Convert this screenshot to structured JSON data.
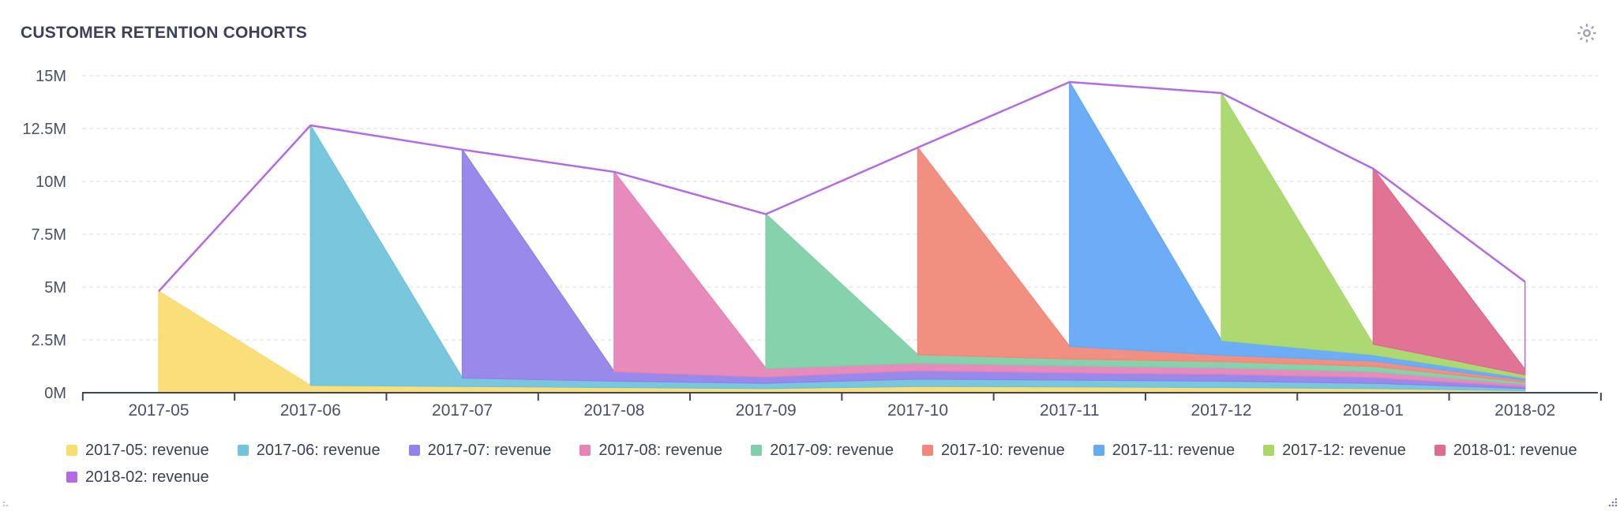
{
  "card": {
    "title": "CUSTOMER RETENTION COHORTS",
    "settings_icon": "gear-icon"
  },
  "colors": {
    "grid": "#d9dbe3",
    "axis": "#3e4460",
    "tick_text": "#4a4f6a",
    "top_line": "#b36ae2"
  },
  "chart_data": {
    "type": "area",
    "stacked": true,
    "title": "CUSTOMER RETENTION COHORTS",
    "xlabel": "",
    "ylabel": "",
    "x": [
      "2017-05",
      "2017-06",
      "2017-07",
      "2017-08",
      "2017-09",
      "2017-10",
      "2017-11",
      "2017-12",
      "2018-01",
      "2018-02"
    ],
    "y_ticks": [
      "0M",
      "2.5M",
      "5M",
      "7.5M",
      "10M",
      "12.5M",
      "15M"
    ],
    "ylim": [
      0,
      15000000
    ],
    "grid": true,
    "legend_position": "bottom-left",
    "series": [
      {
        "name": "2017-05: revenue",
        "color": "#f9dc72",
        "values": [
          4800000,
          350000,
          300000,
          250000,
          200000,
          300000,
          280000,
          250000,
          200000,
          100000
        ]
      },
      {
        "name": "2017-06: revenue",
        "color": "#71c4db",
        "values": [
          0,
          12300000,
          400000,
          300000,
          250000,
          350000,
          320000,
          300000,
          250000,
          100000
        ]
      },
      {
        "name": "2017-07: revenue",
        "color": "#9283ea",
        "values": [
          0,
          0,
          10800000,
          450000,
          300000,
          400000,
          350000,
          330000,
          280000,
          100000
        ]
      },
      {
        "name": "2017-08: revenue",
        "color": "#e684b8",
        "values": [
          0,
          0,
          0,
          9450000,
          400000,
          350000,
          330000,
          300000,
          270000,
          100000
        ]
      },
      {
        "name": "2017-09: revenue",
        "color": "#7fd0a8",
        "values": [
          0,
          0,
          0,
          0,
          7300000,
          400000,
          320000,
          300000,
          250000,
          100000
        ]
      },
      {
        "name": "2017-10: revenue",
        "color": "#f0897a",
        "values": [
          0,
          0,
          0,
          0,
          0,
          9800000,
          600000,
          300000,
          250000,
          100000
        ]
      },
      {
        "name": "2017-11: revenue",
        "color": "#65a9f7",
        "values": [
          0,
          0,
          0,
          0,
          0,
          0,
          12500000,
          700000,
          300000,
          100000
        ]
      },
      {
        "name": "2017-12: revenue",
        "color": "#a9d76a",
        "values": [
          0,
          0,
          0,
          0,
          0,
          0,
          0,
          11700000,
          500000,
          150000
        ]
      },
      {
        "name": "2018-01: revenue",
        "color": "#df6b8f",
        "values": [
          0,
          0,
          0,
          0,
          0,
          0,
          0,
          0,
          8300000,
          250000
        ]
      },
      {
        "name": "2018-02: revenue",
        "color": "#b36ae2",
        "values": [
          0,
          0,
          0,
          0,
          0,
          0,
          0,
          0,
          0,
          4150000
        ]
      }
    ]
  }
}
